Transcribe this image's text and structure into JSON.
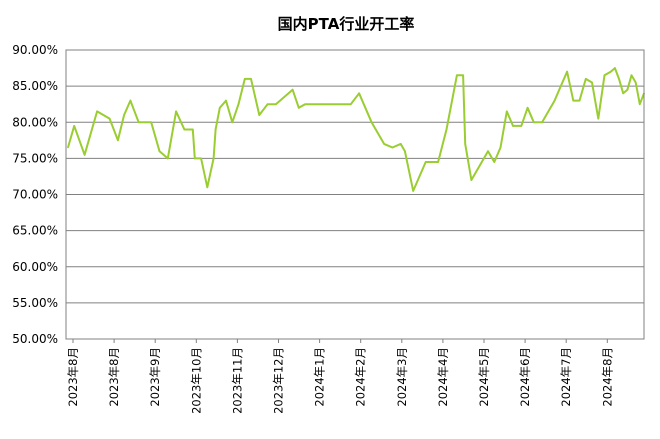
{
  "chart_data": {
    "type": "line",
    "title": "国内PTA行业开工率",
    "xlabel": "",
    "ylabel": "",
    "ylim": [
      50,
      90
    ],
    "grid": true,
    "legend": "none",
    "y_ticks": [
      "50.00%",
      "55.00%",
      "60.00%",
      "65.00%",
      "70.00%",
      "75.00%",
      "80.00%",
      "85.00%",
      "90.00%"
    ],
    "x_ticks": [
      "2023年8月",
      "2023年8月",
      "2023年9月",
      "2023年10月",
      "2023年11月",
      "2023年12月",
      "2024年1月",
      "2024年2月",
      "2024年3月",
      "2024年4月",
      "2024年5月",
      "2024年6月",
      "2024年7月",
      "2024年8月"
    ],
    "series": [
      {
        "color": "#9acd32",
        "x": [
          0,
          0.15,
          0.4,
          0.7,
          1.0,
          1.2,
          1.35,
          1.5,
          1.7,
          1.85,
          2.0,
          2.2,
          2.4,
          2.6,
          2.8,
          3.0,
          3.05,
          3.2,
          3.35,
          3.5,
          3.55,
          3.65,
          3.8,
          3.95,
          4.1,
          4.25,
          4.4,
          4.6,
          4.8,
          5.0,
          5.4,
          5.55,
          5.7,
          5.9,
          6.1,
          6.3,
          6.5,
          6.8,
          7.0,
          7.3,
          7.6,
          7.8,
          8.0,
          8.1,
          8.3,
          8.6,
          8.9,
          9.1,
          9.35,
          9.5,
          9.55,
          9.7,
          9.9,
          10.1,
          10.25,
          10.4,
          10.55,
          10.7,
          10.9,
          11.05,
          11.2,
          11.4,
          11.7,
          11.85,
          12.0,
          12.15,
          12.3,
          12.45,
          12.6,
          12.75,
          12.9,
          13.05,
          13.15,
          13.25,
          13.35,
          13.45,
          13.55,
          13.65,
          13.75,
          13.85
        ],
        "values": [
          76.5,
          79.5,
          75.5,
          81.5,
          80.5,
          77.5,
          81.0,
          83.0,
          80.0,
          80.0,
          80.0,
          76.0,
          75.0,
          81.5,
          79.0,
          79.0,
          75.0,
          75.0,
          71.0,
          75.0,
          79.0,
          82.0,
          83.0,
          80.0,
          82.5,
          86.0,
          86.0,
          81.0,
          82.5,
          82.5,
          84.5,
          82.0,
          82.5,
          82.5,
          82.5,
          82.5,
          82.5,
          82.5,
          84.0,
          80.0,
          77.0,
          76.5,
          77.0,
          76.0,
          70.5,
          74.5,
          74.5,
          79.0,
          86.5,
          86.5,
          77.0,
          72.0,
          74.0,
          76.0,
          74.5,
          76.5,
          81.5,
          79.5,
          79.5,
          82.0,
          80.0,
          80.0,
          83.0,
          85.0,
          87.0,
          83.0,
          83.0,
          86.0,
          85.5,
          80.5,
          86.5,
          87.0,
          87.5,
          86.0,
          84.0,
          84.5,
          86.5,
          85.5,
          82.5,
          84.0
        ]
      }
    ]
  }
}
